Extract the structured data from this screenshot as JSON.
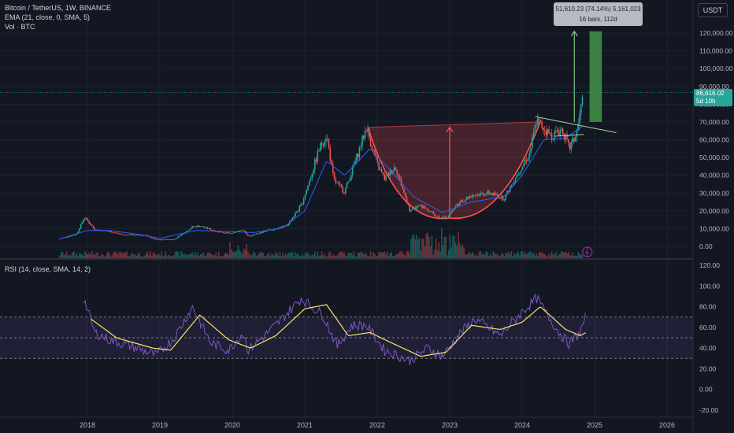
{
  "header": {
    "title": "Bitcoin / TetherUS, 1W, BINANCE",
    "ema": "EMA (21, close, 0, SMA, 5)",
    "vol": "Vol · BTC",
    "rsi": "RSI (14, close, SMA, 14, 2)",
    "currency": "USDT"
  },
  "measure": {
    "line1": "51,610.23 (74.14%) 5,161,023",
    "line2": "16 bars, 112d"
  },
  "last_price": {
    "value": "86,616.02",
    "countdown": "5d 10h"
  },
  "colors": {
    "up": "#26a69a",
    "down": "#ef5350",
    "ema": "#2962ff",
    "rsi": "#7e57c2",
    "rsi_ma": "#f5e663",
    "pattern": "#ff5252",
    "target": "#4caf50",
    "bg": "#131722"
  },
  "chart_data": [
    {
      "type": "candlestick",
      "title": "Bitcoin / TetherUS, 1W, BINANCE",
      "y_axis_ticks": [
        "120,000.00",
        "110,000.00",
        "100,000.00",
        "90,000.00",
        "80,000.00",
        "70,000.00",
        "60,000.00",
        "50,000.00",
        "40,000.00",
        "30,000.00",
        "20,000.00",
        "10,000.00",
        "0.00"
      ],
      "x_axis_ticks": [
        "2018",
        "2019",
        "2020",
        "2021",
        "2022",
        "2023",
        "2024",
        "2025",
        "2026"
      ],
      "ylim": [
        0,
        120000
      ],
      "price_points": [
        {
          "t": 2017.62,
          "v": 4300
        },
        {
          "t": 2017.85,
          "v": 7000
        },
        {
          "t": 2017.96,
          "v": 16500
        },
        {
          "t": 2018.1,
          "v": 9500
        },
        {
          "t": 2018.3,
          "v": 8500
        },
        {
          "t": 2018.5,
          "v": 6500
        },
        {
          "t": 2018.8,
          "v": 6300
        },
        {
          "t": 2018.95,
          "v": 3700
        },
        {
          "t": 2019.2,
          "v": 4000
        },
        {
          "t": 2019.45,
          "v": 11000
        },
        {
          "t": 2019.55,
          "v": 11500
        },
        {
          "t": 2019.8,
          "v": 8300
        },
        {
          "t": 2020.0,
          "v": 7200
        },
        {
          "t": 2020.15,
          "v": 9500
        },
        {
          "t": 2020.22,
          "v": 5500
        },
        {
          "t": 2020.5,
          "v": 9200
        },
        {
          "t": 2020.75,
          "v": 11500
        },
        {
          "t": 2020.95,
          "v": 23000
        },
        {
          "t": 2021.05,
          "v": 35000
        },
        {
          "t": 2021.2,
          "v": 55000
        },
        {
          "t": 2021.3,
          "v": 63000
        },
        {
          "t": 2021.4,
          "v": 37000
        },
        {
          "t": 2021.55,
          "v": 31000
        },
        {
          "t": 2021.7,
          "v": 48000
        },
        {
          "t": 2021.85,
          "v": 67000
        },
        {
          "t": 2022.0,
          "v": 46000
        },
        {
          "t": 2022.1,
          "v": 38000
        },
        {
          "t": 2022.25,
          "v": 45000
        },
        {
          "t": 2022.45,
          "v": 20000
        },
        {
          "t": 2022.6,
          "v": 23000
        },
        {
          "t": 2022.85,
          "v": 16500
        },
        {
          "t": 2022.97,
          "v": 16600
        },
        {
          "t": 2023.1,
          "v": 23500
        },
        {
          "t": 2023.3,
          "v": 29000
        },
        {
          "t": 2023.55,
          "v": 30000
        },
        {
          "t": 2023.75,
          "v": 27000
        },
        {
          "t": 2023.95,
          "v": 42000
        },
        {
          "t": 2024.1,
          "v": 52000
        },
        {
          "t": 2024.2,
          "v": 71000
        },
        {
          "t": 2024.4,
          "v": 62000
        },
        {
          "t": 2024.55,
          "v": 66000
        },
        {
          "t": 2024.65,
          "v": 55000
        },
        {
          "t": 2024.75,
          "v": 63000
        },
        {
          "t": 2024.85,
          "v": 86616
        }
      ],
      "ema_points": [
        {
          "t": 2017.62,
          "v": 4200
        },
        {
          "t": 2018.0,
          "v": 9000
        },
        {
          "t": 2018.3,
          "v": 9000
        },
        {
          "t": 2018.7,
          "v": 6800
        },
        {
          "t": 2019.0,
          "v": 4500
        },
        {
          "t": 2019.5,
          "v": 9000
        },
        {
          "t": 2019.9,
          "v": 8500
        },
        {
          "t": 2020.3,
          "v": 7800
        },
        {
          "t": 2020.7,
          "v": 10500
        },
        {
          "t": 2021.0,
          "v": 20000
        },
        {
          "t": 2021.3,
          "v": 48000
        },
        {
          "t": 2021.55,
          "v": 40000
        },
        {
          "t": 2021.9,
          "v": 55000
        },
        {
          "t": 2022.2,
          "v": 42000
        },
        {
          "t": 2022.5,
          "v": 28000
        },
        {
          "t": 2022.9,
          "v": 19000
        },
        {
          "t": 2023.3,
          "v": 25000
        },
        {
          "t": 2023.75,
          "v": 28000
        },
        {
          "t": 2024.0,
          "v": 40000
        },
        {
          "t": 2024.3,
          "v": 60000
        },
        {
          "t": 2024.6,
          "v": 61000
        },
        {
          "t": 2024.85,
          "v": 68000
        }
      ],
      "last_price": 86616.02,
      "annotations": {
        "cup_rim_left": {
          "t": 2021.87,
          "v": 67000
        },
        "cup_rim_right": {
          "t": 2024.25,
          "v": 70000
        },
        "cup_bottom": {
          "t": 2023.0,
          "v": 16000
        },
        "measure_arrow": {
          "t": 2024.72,
          "v_from": 70000,
          "v_to": 121000
        },
        "target_box": {
          "t_from": 2024.93,
          "t_to": 2025.1,
          "v_from": 70000,
          "v_to": 121000
        },
        "triangle_upper": [
          {
            "t": 2024.18,
            "v": 73000
          },
          {
            "t": 2025.3,
            "v": 64000
          }
        ],
        "triangle_lower": [
          {
            "t": 2024.45,
            "v": 62000
          },
          {
            "t": 2024.85,
            "v": 63000
          }
        ]
      }
    },
    {
      "type": "line",
      "name": "RSI (14, close, SMA, 14, 2)",
      "y_axis_ticks": [
        "120.00",
        "100.00",
        "80.00",
        "60.00",
        "40.00",
        "20.00",
        "0.00",
        "-20.00"
      ],
      "ylim": [
        -20,
        120
      ],
      "bands": [
        30,
        50,
        70
      ],
      "rsi_points": [
        {
          "t": 2017.95,
          "v": 88
        },
        {
          "t": 2018.1,
          "v": 55
        },
        {
          "t": 2018.3,
          "v": 48
        },
        {
          "t": 2018.6,
          "v": 42
        },
        {
          "t": 2018.95,
          "v": 33
        },
        {
          "t": 2019.2,
          "v": 50
        },
        {
          "t": 2019.45,
          "v": 80
        },
        {
          "t": 2019.7,
          "v": 45
        },
        {
          "t": 2019.95,
          "v": 38
        },
        {
          "t": 2020.15,
          "v": 55
        },
        {
          "t": 2020.22,
          "v": 38
        },
        {
          "t": 2020.6,
          "v": 62
        },
        {
          "t": 2020.95,
          "v": 88
        },
        {
          "t": 2021.25,
          "v": 72
        },
        {
          "t": 2021.45,
          "v": 42
        },
        {
          "t": 2021.65,
          "v": 62
        },
        {
          "t": 2021.85,
          "v": 62
        },
        {
          "t": 2022.1,
          "v": 38
        },
        {
          "t": 2022.45,
          "v": 28
        },
        {
          "t": 2022.7,
          "v": 40
        },
        {
          "t": 2022.9,
          "v": 32
        },
        {
          "t": 2023.15,
          "v": 55
        },
        {
          "t": 2023.35,
          "v": 68
        },
        {
          "t": 2023.7,
          "v": 52
        },
        {
          "t": 2024.0,
          "v": 75
        },
        {
          "t": 2024.2,
          "v": 88
        },
        {
          "t": 2024.5,
          "v": 56
        },
        {
          "t": 2024.65,
          "v": 44
        },
        {
          "t": 2024.8,
          "v": 55
        },
        {
          "t": 2024.88,
          "v": 71
        }
      ],
      "rsi_ma_points": [
        {
          "t": 2018.05,
          "v": 68
        },
        {
          "t": 2018.4,
          "v": 50
        },
        {
          "t": 2018.9,
          "v": 40
        },
        {
          "t": 2019.15,
          "v": 38
        },
        {
          "t": 2019.55,
          "v": 72
        },
        {
          "t": 2019.95,
          "v": 48
        },
        {
          "t": 2020.25,
          "v": 40
        },
        {
          "t": 2020.6,
          "v": 52
        },
        {
          "t": 2021.0,
          "v": 78
        },
        {
          "t": 2021.3,
          "v": 82
        },
        {
          "t": 2021.6,
          "v": 52
        },
        {
          "t": 2021.9,
          "v": 55
        },
        {
          "t": 2022.2,
          "v": 45
        },
        {
          "t": 2022.6,
          "v": 32
        },
        {
          "t": 2022.95,
          "v": 36
        },
        {
          "t": 2023.3,
          "v": 62
        },
        {
          "t": 2023.7,
          "v": 58
        },
        {
          "t": 2024.0,
          "v": 65
        },
        {
          "t": 2024.25,
          "v": 80
        },
        {
          "t": 2024.6,
          "v": 58
        },
        {
          "t": 2024.8,
          "v": 52
        },
        {
          "t": 2024.88,
          "v": 55
        }
      ]
    }
  ]
}
